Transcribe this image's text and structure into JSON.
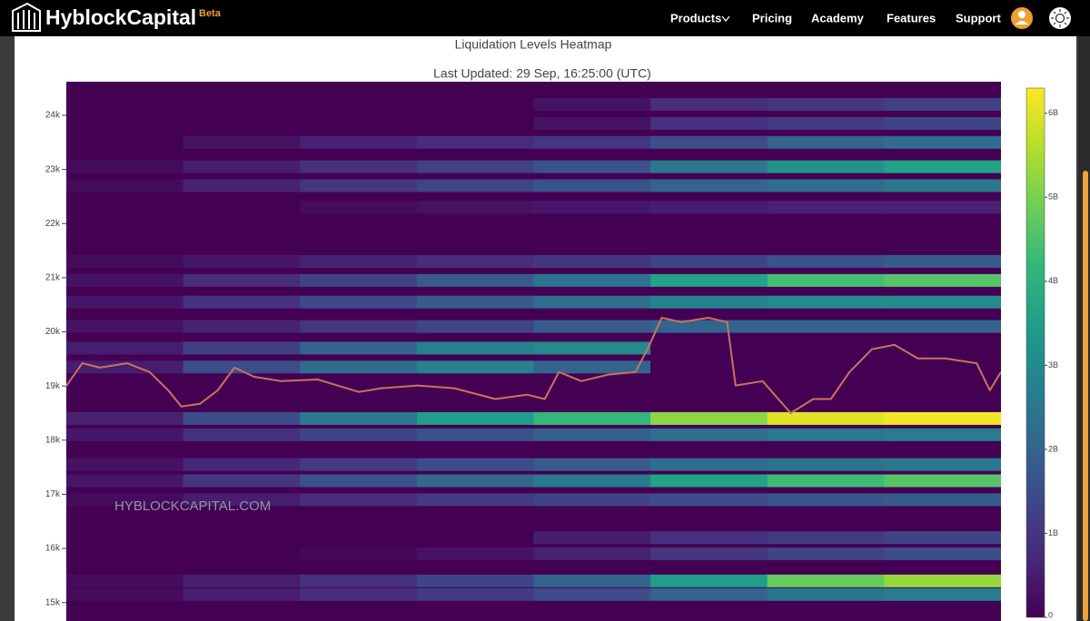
{
  "header": {
    "logo": "HyblockCapital",
    "badge": "Beta",
    "nav": [
      "Products",
      "Pricing",
      "Academy",
      "Features",
      "Support"
    ]
  },
  "chart_data": {
    "type": "heatmap",
    "title": "Liquidation Levels Heatmap",
    "subtitle": "Last Updated: 29 Sep, 16:25:00 (UTC)",
    "annotations": [
      "HYBLOCKCAPITAL.COM"
    ],
    "ylim": [
      14660,
      24620
    ],
    "yticks": [
      {
        "value": 15000,
        "label": "15k"
      },
      {
        "value": 16000,
        "label": "16k"
      },
      {
        "value": 17000,
        "label": "17k"
      },
      {
        "value": 18000,
        "label": "18k"
      },
      {
        "value": 19000,
        "label": "19k"
      },
      {
        "value": 20000,
        "label": "20k"
      },
      {
        "value": 21000,
        "label": "21k"
      },
      {
        "value": 22000,
        "label": "22k"
      },
      {
        "value": 23000,
        "label": "23k"
      },
      {
        "value": 24000,
        "label": "24k"
      }
    ],
    "xlim": [
      0,
      100
    ],
    "zlim": [
      0,
      6300000000
    ],
    "zticks": [
      0,
      {
        "value": 1000000000,
        "label": "1B"
      },
      {
        "value": 2000000000,
        "label": "2B"
      },
      {
        "value": 3000000000,
        "label": "3B"
      },
      {
        "value": 4000000000,
        "label": "4B"
      },
      {
        "value": 5000000000,
        "label": "5B"
      },
      {
        "value": 6000000000,
        "label": "6B"
      }
    ],
    "colorscale": [
      "#440154",
      "#482878",
      "#3e4989",
      "#31688e",
      "#26828e",
      "#1f9e89",
      "#35b779",
      "#6ece58",
      "#b5de2b",
      "#fde725"
    ],
    "y": [
      24200,
      23850,
      23500,
      23050,
      22700,
      22300,
      21300,
      20950,
      20550,
      20100,
      19700,
      19350,
      18400,
      18100,
      17550,
      17250,
      16900,
      16200,
      15900,
      15400,
      15150
    ],
    "z": [
      [
        0,
        0,
        0,
        0,
        300000000.0,
        800000000.0,
        1000000000.0,
        1200000000.0
      ],
      [
        0,
        0,
        0,
        0,
        300000000.0,
        900000000.0,
        1100000000.0,
        1300000000.0
      ],
      [
        0,
        300000000.0,
        600000000.0,
        800000000.0,
        1000000000.0,
        1500000000.0,
        2000000000.0,
        2200000000.0
      ],
      [
        200000000.0,
        500000000.0,
        900000000.0,
        1200000000.0,
        1600000000.0,
        2500000000.0,
        3200000000.0,
        3600000000.0
      ],
      [
        200000000.0,
        600000000.0,
        1000000000.0,
        1300000000.0,
        1600000000.0,
        2000000000.0,
        2300000000.0,
        2500000000.0
      ],
      [
        0,
        0,
        200000000.0,
        300000000.0,
        400000000.0,
        500000000.0,
        600000000.0,
        600000000.0
      ],
      [
        200000000.0,
        400000000.0,
        600000000.0,
        800000000.0,
        1000000000.0,
        1300000000.0,
        1600000000.0,
        1800000000.0
      ],
      [
        300000000.0,
        800000000.0,
        1300000000.0,
        1800000000.0,
        2400000000.0,
        3600000000.0,
        4400000000.0,
        4600000000.0
      ],
      [
        400000000.0,
        900000000.0,
        1400000000.0,
        1800000000.0,
        2200000000.0,
        2800000000.0,
        3000000000.0,
        3000000000.0
      ],
      [
        300000000.0,
        600000000.0,
        1000000000.0,
        1300000000.0,
        1800000000.0,
        2000000000.0,
        2000000000.0,
        2000000000.0
      ],
      [
        500000000.0,
        1200000000.0,
        2000000000.0,
        2800000000.0,
        3000000000.0,
        0,
        0,
        0
      ],
      [
        500000000.0,
        1500000000.0,
        2200000000.0,
        2800000000.0,
        2000000000.0,
        0,
        0,
        0
      ],
      [
        600000000.0,
        1500000000.0,
        2500000000.0,
        3500000000.0,
        4200000000.0,
        5200000000.0,
        6000000000.0,
        6200000000.0
      ],
      [
        400000000.0,
        900000000.0,
        1300000000.0,
        1600000000.0,
        1900000000.0,
        2200000000.0,
        2500000000.0,
        2600000000.0
      ],
      [
        300000000.0,
        700000000.0,
        1100000000.0,
        1500000000.0,
        1800000000.0,
        2200000000.0,
        2400000000.0,
        2500000000.0
      ],
      [
        400000000.0,
        1000000000.0,
        1600000000.0,
        2100000000.0,
        2600000000.0,
        3600000000.0,
        4300000000.0,
        4600000000.0
      ],
      [
        200000000.0,
        500000000.0,
        800000000.0,
        1100000000.0,
        1300000000.0,
        1500000000.0,
        1700000000.0,
        1800000000.0
      ],
      [
        0,
        0,
        0,
        0,
        500000000.0,
        900000000.0,
        1100000000.0,
        1300000000.0
      ],
      [
        0,
        0,
        100000000.0,
        300000000.0,
        600000000.0,
        1000000000.0,
        1300000000.0,
        1500000000.0
      ],
      [
        200000000.0,
        500000000.0,
        900000000.0,
        1300000000.0,
        2000000000.0,
        3500000000.0,
        4800000000.0,
        5300000000.0
      ],
      [
        200000000.0,
        500000000.0,
        800000000.0,
        1100000000.0,
        1500000000.0,
        2000000000.0,
        2400000000.0,
        2600000000.0
      ]
    ],
    "series": [
      {
        "color": "#c8745c",
        "x": [
          0,
          1.7,
          3.6,
          6.5,
          8.9,
          10.9,
          12.3,
          14.3,
          16.2,
          18.0,
          20.1,
          23.0,
          26.9,
          31.3,
          33.7,
          37.6,
          41.5,
          45.9,
          49.3,
          51.2,
          52.7,
          55.1,
          58.0,
          60.9,
          62.4,
          63.7,
          65.8,
          68.7,
          70.7,
          71.6,
          74.5,
          77.5,
          79.9,
          81.8,
          83.8,
          86.2,
          88.6,
          91.1,
          94.0,
          97.4,
          98.8,
          100
        ],
        "values": [
          19000,
          19420,
          19340,
          19420,
          19260,
          18920,
          18620,
          18670,
          18920,
          19340,
          19170,
          19090,
          19120,
          18890,
          18960,
          19010,
          18960,
          18760,
          18840,
          18760,
          19260,
          19090,
          19210,
          19260,
          19760,
          20260,
          20180,
          20260,
          20180,
          19010,
          19090,
          18500,
          18760,
          18760,
          19260,
          19680,
          19760,
          19510,
          19510,
          19420,
          18920,
          19260
        ]
      }
    ]
  }
}
